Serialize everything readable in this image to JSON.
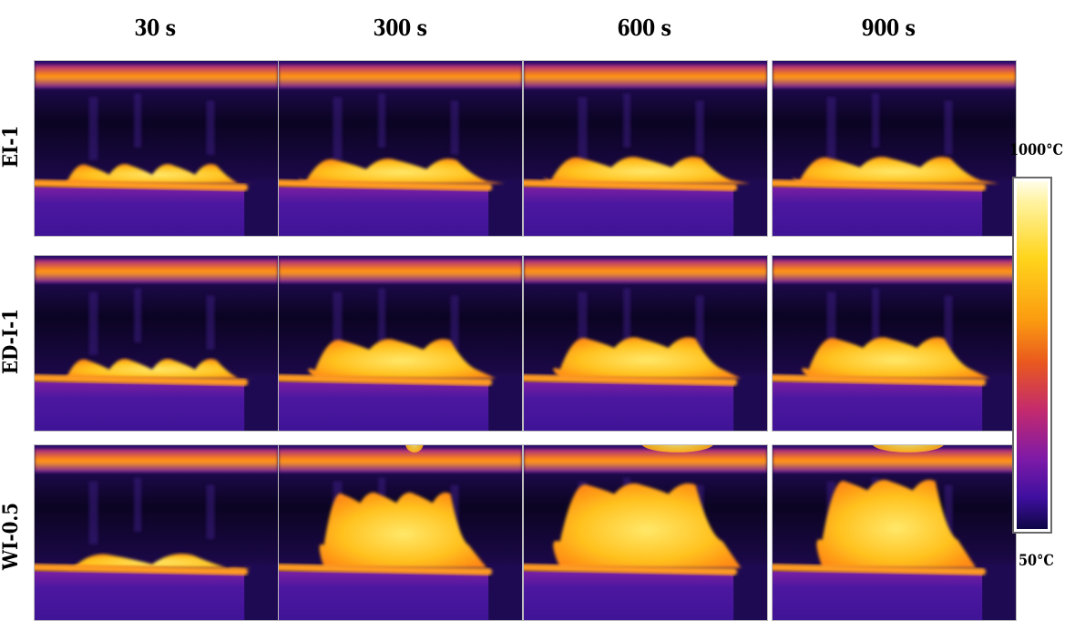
{
  "columns": [
    "30 s",
    "300 s",
    "600 s",
    "900 s"
  ],
  "rows": [
    "EI-1",
    "ED-I-1",
    "WI-0.5"
  ],
  "colorbar": {
    "max_label": "1000°C",
    "min_label": "50°C"
  },
  "colors": {
    "hot": "#ffe65a",
    "mid": "#ff8c00",
    "warm": "#d2326e",
    "cool": "#50148c",
    "cold": "#0b0422"
  }
}
